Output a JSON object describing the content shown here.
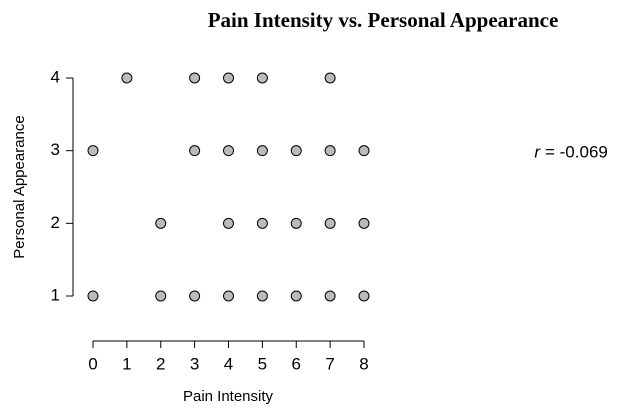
{
  "chart_data": {
    "type": "scatter",
    "title": "Pain Intensity vs. Personal Appearance",
    "xlabel": "Pain Intensity",
    "ylabel": "Personal Appearance",
    "annotation_symbol": "r",
    "annotation_text": "= -0.069",
    "color": "#bbbbbb",
    "x": [
      1,
      3,
      4,
      5,
      7,
      0,
      3,
      4,
      5,
      6,
      7,
      8,
      2,
      4,
      5,
      6,
      7,
      8,
      0,
      2,
      3,
      4,
      5,
      6,
      7,
      8
    ],
    "y": [
      4,
      4,
      4,
      4,
      4,
      3,
      3,
      3,
      3,
      3,
      3,
      3,
      2,
      2,
      2,
      2,
      2,
      2,
      1,
      1,
      1,
      1,
      1,
      1,
      1,
      1
    ],
    "xlim": [
      0,
      8
    ],
    "xticks": [
      0,
      1,
      2,
      3,
      4,
      5,
      6,
      7,
      8
    ],
    "ylim": [
      1,
      4
    ],
    "yticks": [
      1,
      2,
      3,
      4
    ]
  }
}
